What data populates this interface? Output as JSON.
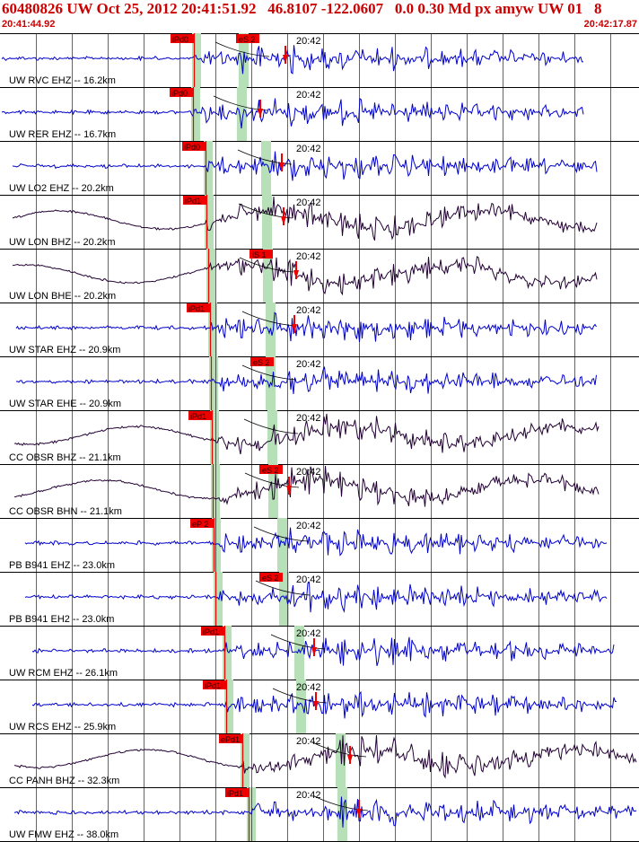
{
  "header": {
    "title": "60480826 UW Oct 25, 2012 20:41:51.92   46.8107 -122.0607   0.0 0.30 Md px amyw UW 01   8",
    "start_time": "20:41:44.92",
    "end_time": "20:42:17.87"
  },
  "colors": {
    "header_text": "#cc0000",
    "pick_box": "#ee0000",
    "trace_blue": "#0000cc",
    "trace_dark": "#220033",
    "phase_window": "#b8e0b8",
    "grid": "#000000"
  },
  "time_mark_label": "20:42",
  "traces": [
    {
      "label": "UW RVC EHZ -- 16.2km",
      "p_pick": "iPd0",
      "s_pick": "eS 2",
      "color": "blue"
    },
    {
      "label": "UW RER EHZ -- 16.7km",
      "p_pick": "iPd0",
      "s_pick": "",
      "color": "blue"
    },
    {
      "label": "UW LO2 EHZ -- 20.2km",
      "p_pick": "iPd0",
      "s_pick": "",
      "color": "blue"
    },
    {
      "label": "UW LON BHZ -- 20.2km",
      "p_pick": "iPd1",
      "s_pick": "",
      "color": "dark"
    },
    {
      "label": "UW LON BHE -- 20.2km",
      "p_pick": "",
      "s_pick": "iS 1",
      "color": "dark"
    },
    {
      "label": "UW STAR EHZ -- 20.9km",
      "p_pick": "iPd1",
      "s_pick": "",
      "color": "blue"
    },
    {
      "label": "UW STAR EHE -- 20.9km",
      "p_pick": "",
      "s_pick": "eS 2",
      "color": "blue"
    },
    {
      "label": "CC OBSR BHZ -- 21.1km",
      "p_pick": "iPd1",
      "s_pick": "",
      "color": "dark"
    },
    {
      "label": "CC OBSR BHN -- 21.1km",
      "p_pick": "",
      "s_pick": "eS 2",
      "color": "dark"
    },
    {
      "label": "PB B941 EHZ -- 23.0km",
      "p_pick": "eP 2",
      "s_pick": "",
      "color": "blue"
    },
    {
      "label": "PB B941 EH2 -- 23.0km",
      "p_pick": "",
      "s_pick": "eS 2",
      "color": "blue"
    },
    {
      "label": "UW RCM EHZ -- 26.1km",
      "p_pick": "iPd1",
      "s_pick": "",
      "color": "blue"
    },
    {
      "label": "UW RCS EHZ -- 25.9km",
      "p_pick": "iPd1",
      "s_pick": "",
      "color": "blue"
    },
    {
      "label": "CC PANH BHZ -- 32.3km",
      "p_pick": "ePd1",
      "s_pick": "",
      "color": "dark"
    },
    {
      "label": "UW FMW EHZ -- 38.0km",
      "p_pick": "iPd1",
      "s_pick": "",
      "color": "blue"
    }
  ]
}
